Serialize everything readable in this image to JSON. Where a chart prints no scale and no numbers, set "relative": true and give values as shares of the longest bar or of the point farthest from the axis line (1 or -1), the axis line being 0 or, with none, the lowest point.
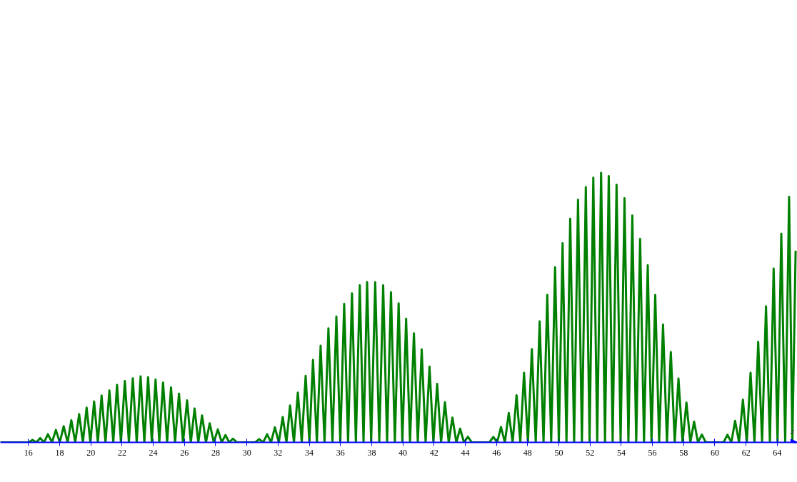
{
  "chart_data": {
    "type": "line",
    "relative": true,
    "xlabel": "x",
    "xlim": [
      14.2,
      65.29
    ],
    "xticks": [
      16,
      18,
      20,
      22,
      24,
      26,
      28,
      30,
      32,
      34,
      36,
      38,
      40,
      42,
      44,
      46,
      48,
      50,
      52,
      54,
      56,
      58,
      60,
      62,
      64
    ],
    "series": [
      {
        "color": "#008000",
        "x": [
          14.2,
          16.01,
          16.26,
          16.51,
          16.75,
          17.0,
          17.25,
          17.51,
          17.76,
          18.01,
          18.26,
          18.51,
          18.75,
          19.0,
          19.25,
          19.49,
          19.73,
          19.97,
          20.21,
          20.45,
          20.69,
          20.94,
          21.19,
          21.44,
          21.68,
          21.93,
          22.18,
          22.44,
          22.69,
          22.94,
          23.19,
          23.43,
          23.67,
          23.91,
          24.15,
          24.39,
          24.63,
          24.89,
          25.14,
          25.4,
          25.65,
          25.91,
          26.17,
          26.41,
          26.65,
          26.89,
          27.13,
          27.38,
          27.62,
          27.88,
          28.14,
          28.39,
          28.63,
          28.87,
          29.11,
          29.36,
          30.54,
          30.79,
          31.05,
          31.3,
          31.55,
          31.8,
          32.05,
          32.3,
          32.54,
          32.77,
          33.02,
          33.27,
          33.52,
          33.77,
          34.01,
          34.24,
          34.49,
          34.73,
          34.98,
          35.23,
          35.49,
          35.74,
          35.99,
          36.24,
          36.49,
          36.74,
          36.99,
          37.24,
          37.48,
          37.71,
          37.97,
          38.23,
          38.49,
          38.74,
          38.99,
          39.24,
          39.49,
          39.73,
          39.97,
          40.21,
          40.46,
          40.71,
          40.96,
          41.21,
          41.46,
          41.71,
          41.96,
          42.2,
          42.45,
          42.7,
          42.94,
          43.18,
          43.43,
          43.67,
          43.92,
          44.17,
          44.42,
          45.55,
          45.8,
          46.05,
          46.29,
          46.54,
          46.79,
          47.04,
          47.29,
          47.53,
          47.77,
          48.02,
          48.27,
          48.52,
          48.77,
          49.02,
          49.26,
          49.51,
          49.76,
          50.0,
          50.24,
          50.49,
          50.73,
          50.98,
          51.23,
          51.48,
          51.73,
          51.97,
          52.21,
          52.46,
          52.71,
          52.96,
          53.2,
          53.45,
          53.7,
          53.96,
          54.21,
          54.46,
          54.71,
          54.96,
          55.21,
          55.46,
          55.7,
          55.94,
          56.18,
          56.43,
          56.68,
          56.93,
          57.18,
          57.43,
          57.67,
          57.93,
          58.18,
          58.43,
          58.67,
          58.92,
          59.17,
          59.42,
          60.56,
          60.81,
          61.06,
          61.3,
          61.55,
          61.8,
          62.05,
          62.29,
          62.54,
          62.78,
          63.03,
          63.28,
          63.53,
          63.77,
          64.02,
          64.26,
          64.51,
          64.76,
          64.97,
          65.18
        ],
        "values": [
          0,
          0,
          0.009,
          0,
          0.016,
          0,
          0.03,
          0,
          0.046,
          0,
          0.06,
          0,
          0.082,
          0,
          0.105,
          0,
          0.129,
          0,
          0.152,
          0,
          0.174,
          0,
          0.193,
          0,
          0.213,
          0,
          0.228,
          0,
          0.238,
          0,
          0.245,
          0,
          0.242,
          0,
          0.233,
          0,
          0.222,
          0,
          0.204,
          0,
          0.181,
          0,
          0.156,
          0,
          0.126,
          0,
          0.1,
          0,
          0.071,
          0,
          0.048,
          0,
          0.027,
          0,
          0.014,
          0,
          0,
          0.012,
          0,
          0.03,
          0,
          0.056,
          0,
          0.094,
          0,
          0.137,
          0,
          0.185,
          0,
          0.247,
          0,
          0.306,
          0,
          0.359,
          0,
          0.423,
          0,
          0.467,
          0,
          0.514,
          0,
          0.553,
          0,
          0.583,
          0,
          0.595,
          0,
          0.594,
          0,
          0.583,
          0,
          0.557,
          0,
          0.516,
          0,
          0.459,
          0,
          0.405,
          0,
          0.345,
          0,
          0.281,
          0,
          0.217,
          0,
          0.149,
          0,
          0.092,
          0,
          0.051,
          0,
          0.021,
          0,
          0,
          0.02,
          0,
          0.057,
          0,
          0.109,
          0,
          0.175,
          0,
          0.258,
          0,
          0.346,
          0,
          0.449,
          0,
          0.547,
          0,
          0.65,
          0,
          0.739,
          0,
          0.83,
          0,
          0.9,
          0,
          0.947,
          0,
          0.982,
          0,
          1.0,
          0,
          0.988,
          0,
          0.956,
          0,
          0.906,
          0,
          0.842,
          0,
          0.755,
          0,
          0.657,
          0,
          0.547,
          0,
          0.437,
          0,
          0.335,
          0,
          0.237,
          0,
          0.148,
          0,
          0.077,
          0,
          0.029,
          0,
          0,
          0.028,
          0,
          0.08,
          0,
          0.158,
          0,
          0.258,
          0,
          0.373,
          0,
          0.505,
          0,
          0.645,
          0,
          0.774,
          0,
          0.911,
          0,
          0.711
        ]
      }
    ]
  }
}
